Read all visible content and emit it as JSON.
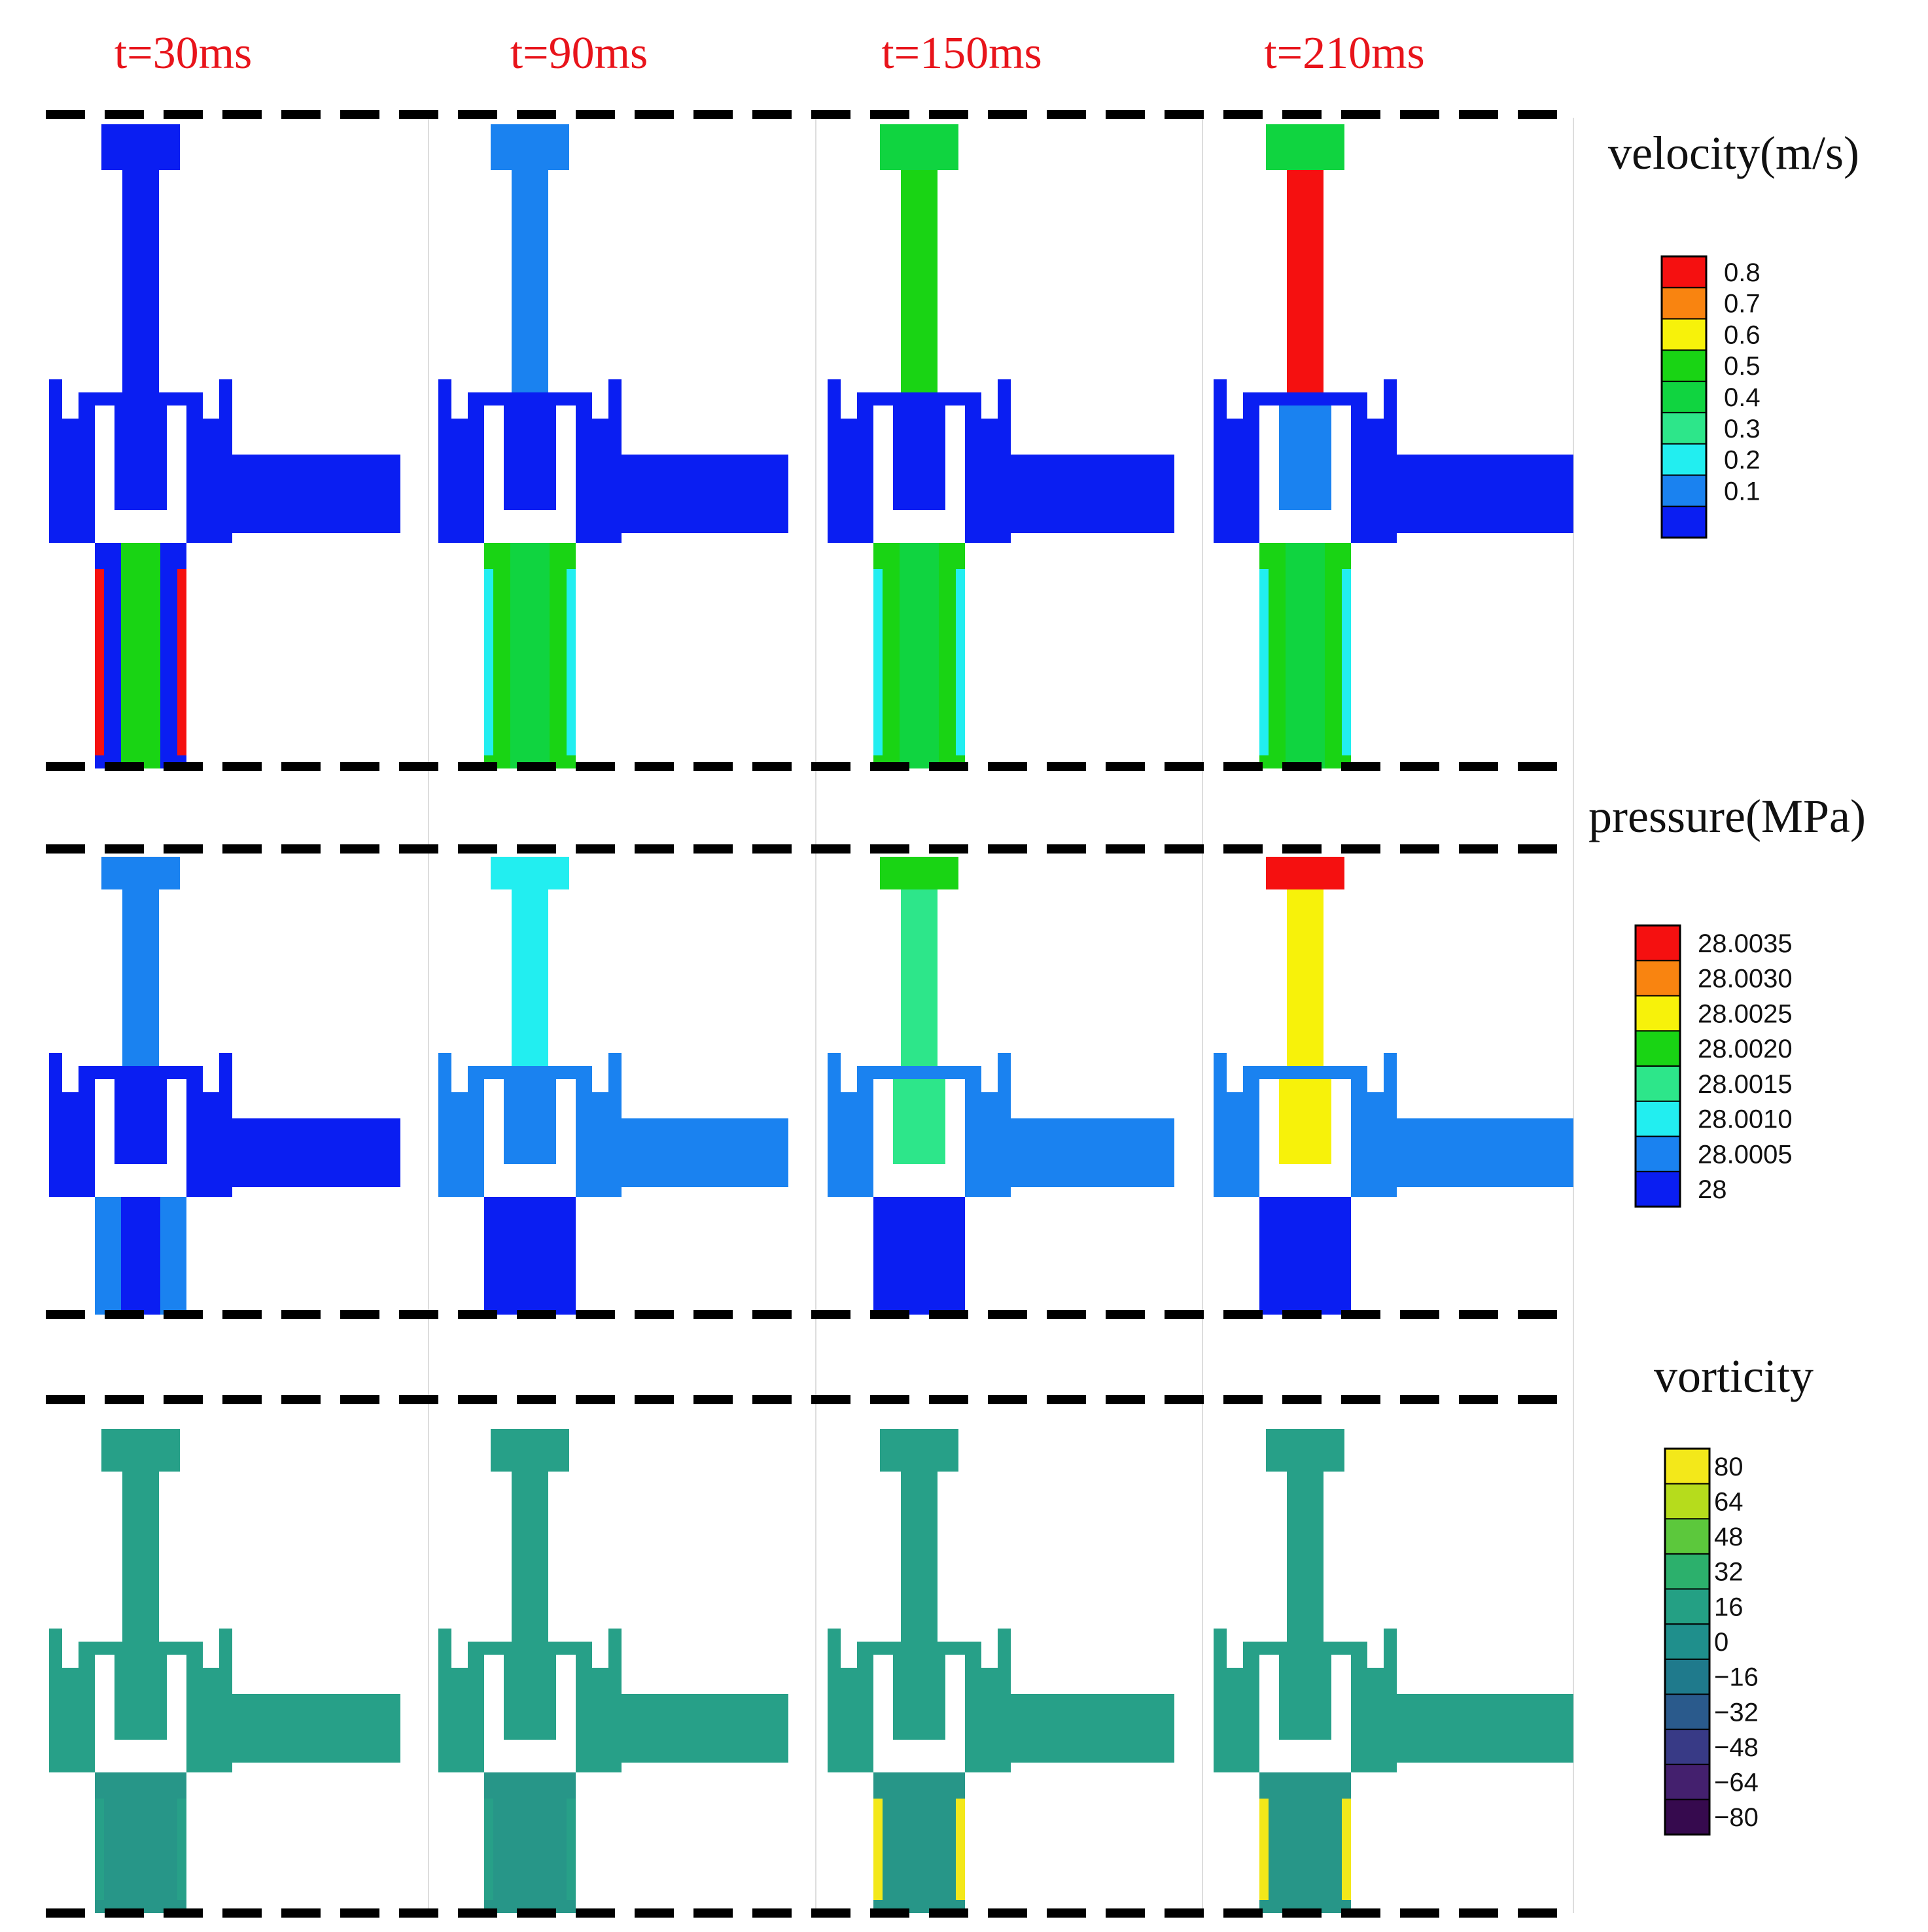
{
  "time_labels": [
    "t=30ms",
    "t=90ms",
    "t=150ms",
    "t=210ms"
  ],
  "sections": [
    {
      "key": "velocity",
      "title": "velocity(m/s)",
      "colorbar": {
        "ticks": [
          "0.8",
          "0.7",
          "0.6",
          "0.5",
          "0.4",
          "0.3",
          "0.2",
          "0.1"
        ],
        "colors": [
          "#f51010",
          "#f98410",
          "#f7f20a",
          "#19d414",
          "#10d440",
          "#2de68a",
          "#22eef0",
          "#1a82f0",
          "#0a1ef2"
        ]
      },
      "frames": [
        {
          "body": "#0a1ef2",
          "upper": "#0a1ef2",
          "neck": "#0a1ef2",
          "mid": "#0a1ef2",
          "lower": "#0a1ef2",
          "wall": "#f51010",
          "lower_core": "#19d414",
          "outlet": "#0a1ef2"
        },
        {
          "body": "#0a1ef2",
          "upper": "#1a82f0",
          "neck": "#1a82f0",
          "mid": "#0a1ef2",
          "lower": "#19d414",
          "wall": "#22eef0",
          "lower_core": "#10d440",
          "outlet": "#0a1ef2"
        },
        {
          "body": "#0a1ef2",
          "upper": "#10d440",
          "neck": "#19d414",
          "mid": "#0a1ef2",
          "lower": "#19d414",
          "wall": "#22eef0",
          "lower_core": "#10d440",
          "outlet": "#0a1ef2"
        },
        {
          "body": "#0a1ef2",
          "upper": "#10d440",
          "neck": "#f51010",
          "mid": "#1a82f0",
          "lower": "#19d414",
          "wall": "#22eef0",
          "lower_core": "#10d440",
          "outlet": "#0a1ef2"
        }
      ]
    },
    {
      "key": "pressure",
      "title": "pressure(MPa)",
      "colorbar": {
        "ticks": [
          "28.0035",
          "28.0030",
          "28.0025",
          "28.0020",
          "28.0015",
          "28.0010",
          "28.0005",
          "28"
        ],
        "colors": [
          "#f51010",
          "#f98410",
          "#f7f20a",
          "#19d414",
          "#2de68a",
          "#22eef0",
          "#1a82f0",
          "#0a1ef2"
        ]
      },
      "frames": [
        {
          "body": "#0a1ef2",
          "upper": "#1a82f0",
          "neck": "#1a82f0",
          "mid": "#0a1ef2",
          "lower": "#1a82f0",
          "lower_core": "#0a1ef2",
          "outlet": "#0a1ef2"
        },
        {
          "body": "#1a82f0",
          "upper": "#22eef0",
          "neck": "#22eef0",
          "mid": "#1a82f0",
          "lower": "#0a1ef2",
          "lower_core": "#0a1ef2",
          "outlet": "#1a82f0"
        },
        {
          "body": "#1a82f0",
          "upper": "#19d414",
          "neck": "#2de68a",
          "mid": "#2de68a",
          "lower": "#0a1ef2",
          "lower_core": "#0a1ef2",
          "outlet": "#1a82f0"
        },
        {
          "body": "#1a82f0",
          "upper": "#f51010",
          "neck": "#f7f20a",
          "mid": "#f7f20a",
          "lower": "#0a1ef2",
          "lower_core": "#0a1ef2",
          "outlet": "#1a82f0"
        }
      ]
    },
    {
      "key": "vorticity",
      "title": "vorticity",
      "colorbar": {
        "ticks": [
          "80",
          "64",
          "48",
          "32",
          "16",
          "0",
          "−16",
          "−32",
          "−48",
          "−64",
          "−80"
        ],
        "colors": [
          "#f3e81a",
          "#b6dc1c",
          "#5cc83c",
          "#2cb06c",
          "#24a084",
          "#1f8f8c",
          "#1f7a8c",
          "#2a5a8c",
          "#383a86",
          "#44206e",
          "#360a4e"
        ]
      },
      "frames": [
        {
          "body": "#27a088",
          "upper": "#27a088",
          "neck": "#27a088",
          "mid": "#27a088",
          "lower": "#279688",
          "wall": "#27a088",
          "outlet": "#27a088"
        },
        {
          "body": "#27a088",
          "upper": "#27a088",
          "neck": "#27a088",
          "mid": "#27a088",
          "lower": "#279688",
          "wall": "#27a088",
          "outlet": "#27a088"
        },
        {
          "body": "#27a088",
          "upper": "#27a088",
          "neck": "#27a088",
          "mid": "#27a088",
          "lower": "#279688",
          "wall": "#f3e81a",
          "outlet": "#27a088"
        },
        {
          "body": "#27a088",
          "upper": "#27a088",
          "neck": "#27a088",
          "mid": "#27a088",
          "lower": "#279688",
          "wall": "#f3e81a",
          "outlet": "#27a088"
        }
      ]
    }
  ]
}
